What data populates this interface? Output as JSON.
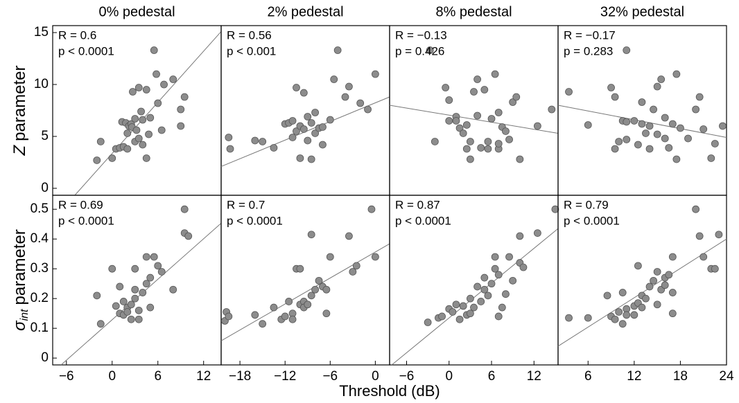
{
  "figure": {
    "xlabel": "Threshold (dB)"
  },
  "chart_data": [
    {
      "type": "scatter",
      "title": "0% pedestal",
      "ylabel": {
        "symbol": "Z",
        "text": "parameter"
      },
      "annotations": [
        "R = 0.6",
        "p < 0.0001"
      ],
      "color": "#8c8c8c",
      "xlim": [
        -7.8,
        14.3
      ],
      "ylim": [
        -0.67,
        15.67
      ],
      "yticks": [
        0,
        5,
        10,
        15
      ],
      "x": [
        -2,
        -1.5,
        0,
        0.5,
        1,
        1.3,
        1.5,
        1.8,
        2,
        2,
        2.2,
        2.5,
        2.6,
        2.7,
        3,
        3,
        3.2,
        3.5,
        3.5,
        3.8,
        4,
        4,
        4.5,
        4.5,
        4.8,
        5,
        5.5,
        5.8,
        6,
        6.5,
        6.8,
        8,
        9,
        9,
        9.5
      ],
      "y": [
        2.7,
        4.5,
        2.9,
        3.8,
        3.9,
        6.4,
        4,
        6.3,
        3.8,
        5.3,
        6,
        6.2,
        5.9,
        9.3,
        4.5,
        6.7,
        5.6,
        9.7,
        4.8,
        7.4,
        4.2,
        6.6,
        2.9,
        9.5,
        5.2,
        6.8,
        13.3,
        11,
        8.2,
        5.6,
        10,
        10.5,
        7.6,
        6,
        8.8
      ],
      "trend": {
        "x": [
          -4.9,
          14.3
        ],
        "y": [
          -0.67,
          15.1
        ]
      }
    },
    {
      "type": "scatter",
      "title": "2% pedestal",
      "annotations": [
        "R = 0.56",
        "p < 0.001"
      ],
      "color": "#8c8c8c",
      "xlim": [
        -20.5,
        1.9
      ],
      "ylim": [
        -0.67,
        15.67
      ],
      "x": [
        -19.5,
        -19.3,
        -16,
        -15,
        -13.5,
        -12,
        -11.5,
        -11,
        -11,
        -10.5,
        -10.5,
        -10,
        -10,
        -9.5,
        -9.5,
        -9,
        -9,
        -8.5,
        -8.5,
        -8,
        -8,
        -7.5,
        -7,
        -7,
        -6,
        -5.5,
        -5,
        -4,
        -3.5,
        -2,
        -1,
        0
      ],
      "y": [
        4.9,
        3.8,
        4.6,
        4.5,
        3.9,
        6.2,
        6.3,
        6.5,
        4.9,
        9.7,
        5.5,
        2.9,
        6,
        5.7,
        9.2,
        6.9,
        4.6,
        2.8,
        6.3,
        5.3,
        7.3,
        5.8,
        4.2,
        5.9,
        6.6,
        10.5,
        13.3,
        8.8,
        9.8,
        8.2,
        7.6,
        11
      ],
      "trend": {
        "x": [
          -20.5,
          1.9
        ],
        "y": [
          2.1,
          8.8
        ]
      }
    },
    {
      "type": "scatter",
      "title": "8% pedestal",
      "annotations": [
        "R = −0.13",
        "p = 0.426"
      ],
      "color": "#8c8c8c",
      "xlim": [
        -8.4,
        15.4
      ],
      "ylim": [
        -0.67,
        15.67
      ],
      "x": [
        -2,
        -0.5,
        0,
        0,
        1,
        1,
        1.5,
        2,
        2.5,
        2.5,
        3,
        3,
        3.5,
        4,
        4,
        4.5,
        5,
        5.5,
        5.5,
        6,
        6.5,
        7,
        7,
        7,
        7.5,
        8,
        8.5,
        9,
        9.5,
        10,
        12.5,
        14.5,
        -2.7
      ],
      "y": [
        4.5,
        9.7,
        8.5,
        6.5,
        6.9,
        6.5,
        5.8,
        5.3,
        6.1,
        3.8,
        4.5,
        2.8,
        9.3,
        10.5,
        7,
        3.9,
        9.5,
        4.5,
        3.8,
        6.7,
        11,
        7.3,
        3.8,
        4.3,
        5.9,
        5.5,
        4.7,
        8.3,
        8.8,
        2.8,
        6,
        7.6,
        13.3
      ],
      "trend": {
        "x": [
          -8.4,
          15.4
        ],
        "y": [
          8.0,
          5.3
        ]
      }
    },
    {
      "type": "scatter",
      "title": "32% pedestal",
      "annotations": [
        "R = −0.17",
        "p = 0.283"
      ],
      "color": "#8c8c8c",
      "xlim": [
        2.1,
        24
      ],
      "ylim": [
        -0.67,
        15.67
      ],
      "x": [
        3.5,
        6,
        9,
        9.5,
        9.5,
        10,
        10.5,
        11,
        11,
        11,
        12,
        12.5,
        13,
        13,
        13.5,
        14,
        14,
        14.5,
        15,
        15,
        15.5,
        16,
        16,
        16.5,
        17,
        17.5,
        18,
        19,
        20,
        20.5,
        21,
        22,
        22.5,
        23.5,
        17.5
      ],
      "y": [
        9.3,
        6.1,
        9.7,
        8.8,
        3.8,
        4.5,
        6.5,
        13.3,
        6.4,
        4.7,
        6.5,
        4.2,
        6.2,
        8.3,
        5.3,
        6,
        3.8,
        7.6,
        9.8,
        5.2,
        10.5,
        6.8,
        4.8,
        3.9,
        6.2,
        11,
        5.8,
        4.8,
        7.6,
        8.8,
        5.7,
        2.9,
        4.3,
        6,
        2.8
      ],
      "trend": {
        "x": [
          2.1,
          24
        ],
        "y": [
          8.0,
          4.9
        ]
      }
    },
    {
      "type": "scatter",
      "ylabel": {
        "symbol": "σ",
        "subscript": "int",
        "text": "parameter"
      },
      "annotations": [
        "R = 0.69",
        "p < 0.0001"
      ],
      "color": "#8c8c8c",
      "xlim": [
        -7.8,
        14.3
      ],
      "ylim": [
        -0.023,
        0.547
      ],
      "yticks": [
        0,
        0.1,
        0.2,
        0.3,
        0.4,
        0.5
      ],
      "xticks": [
        {
          "value": -6,
          "label": "−6"
        },
        0,
        6,
        12
      ],
      "x": [
        -2,
        -1.5,
        0,
        0.5,
        1,
        1,
        1.5,
        1.5,
        2,
        2,
        2.5,
        2.5,
        3,
        3,
        3,
        3.5,
        3.5,
        4,
        4.5,
        4.5,
        5,
        5,
        5.5,
        6,
        6.5,
        8,
        9.5,
        9.5,
        10
      ],
      "y": [
        0.21,
        0.115,
        0.3,
        0.175,
        0.24,
        0.15,
        0.19,
        0.145,
        0.17,
        0.155,
        0.13,
        0.18,
        0.23,
        0.3,
        0.2,
        0.13,
        0.16,
        0.22,
        0.34,
        0.25,
        0.27,
        0.17,
        0.34,
        0.31,
        0.29,
        0.23,
        0.42,
        0.5,
        0.41
      ],
      "trend": {
        "x": [
          -6.7,
          14.3
        ],
        "y": [
          -0.023,
          0.453
        ]
      }
    },
    {
      "type": "scatter",
      "annotations": [
        "R = 0.7",
        "p < 0.0001"
      ],
      "color": "#8c8c8c",
      "xlim": [
        -20.5,
        1.9
      ],
      "ylim": [
        -0.023,
        0.547
      ],
      "xticks": [
        {
          "value": -18,
          "label": "−18"
        },
        {
          "value": -12,
          "label": "−12"
        },
        {
          "value": -6,
          "label": "−6"
        },
        0
      ],
      "x": [
        -20,
        -19.8,
        -19.5,
        -16,
        -15,
        -13.5,
        -12.5,
        -12,
        -11.5,
        -11,
        -11,
        -10.5,
        -10,
        -10,
        -9.5,
        -9.5,
        -9,
        -8.5,
        -8.5,
        -8,
        -7.5,
        -7,
        -6.5,
        -6,
        -6.5,
        -3.5,
        -3,
        -2.5,
        -0.5,
        0
      ],
      "y": [
        0.125,
        0.155,
        0.14,
        0.145,
        0.115,
        0.17,
        0.13,
        0.14,
        0.19,
        0.15,
        0.13,
        0.3,
        0.3,
        0.18,
        0.19,
        0.17,
        0.18,
        0.415,
        0.21,
        0.23,
        0.26,
        0.24,
        0.23,
        0.34,
        0.15,
        0.41,
        0.29,
        0.31,
        0.5,
        0.34
      ],
      "trend": {
        "x": [
          -20.5,
          1.9
        ],
        "y": [
          0.058,
          0.384
        ]
      }
    },
    {
      "type": "scatter",
      "annotations": [
        "R = 0.87",
        "p < 0.0001"
      ],
      "color": "#8c8c8c",
      "xlim": [
        -8.4,
        15.4
      ],
      "ylim": [
        -0.023,
        0.547
      ],
      "xticks": [
        {
          "value": -6,
          "label": "−6"
        },
        0,
        6,
        12
      ],
      "x": [
        -3,
        -1.5,
        -1,
        0,
        0.5,
        1,
        1.5,
        2,
        2.5,
        3,
        3,
        3.5,
        4,
        4.5,
        5,
        5,
        5.5,
        6,
        6.5,
        6.5,
        7,
        7,
        7.5,
        8,
        8.5,
        9,
        10,
        10,
        10.5,
        12.5,
        15
      ],
      "y": [
        0.12,
        0.135,
        0.14,
        0.165,
        0.155,
        0.18,
        0.13,
        0.175,
        0.145,
        0.2,
        0.15,
        0.17,
        0.24,
        0.19,
        0.27,
        0.23,
        0.21,
        0.25,
        0.3,
        0.34,
        0.14,
        0.28,
        0.17,
        0.215,
        0.34,
        0.26,
        0.41,
        0.32,
        0.305,
        0.42,
        0.5
      ],
      "trend": {
        "x": [
          -8.1,
          15.4
        ],
        "y": [
          -0.023,
          0.435
        ]
      }
    },
    {
      "type": "scatter",
      "annotations": [
        "R = 0.79",
        "p < 0.0001"
      ],
      "color": "#8c8c8c",
      "xlim": [
        2.1,
        24
      ],
      "ylim": [
        -0.023,
        0.547
      ],
      "xticks": [
        6,
        12,
        18,
        24
      ],
      "x": [
        3.5,
        6,
        8.5,
        9,
        9.5,
        10,
        10.5,
        10.5,
        11,
        11,
        12,
        12,
        12.5,
        12.5,
        13,
        13,
        13.5,
        14,
        14.5,
        15,
        15,
        15.5,
        16,
        16,
        17,
        17,
        17,
        16.5,
        20,
        20.5,
        21,
        22,
        22.5,
        23
      ],
      "y": [
        0.135,
        0.135,
        0.21,
        0.14,
        0.13,
        0.155,
        0.115,
        0.22,
        0.165,
        0.145,
        0.175,
        0.145,
        0.31,
        0.185,
        0.17,
        0.21,
        0.2,
        0.24,
        0.26,
        0.29,
        0.18,
        0.23,
        0.245,
        0.27,
        0.15,
        0.22,
        0.34,
        0.28,
        0.5,
        0.41,
        0.34,
        0.3,
        0.3,
        0.415
      ],
      "trend": {
        "x": [
          2.1,
          24
        ],
        "y": [
          0.04,
          0.4
        ]
      }
    }
  ]
}
